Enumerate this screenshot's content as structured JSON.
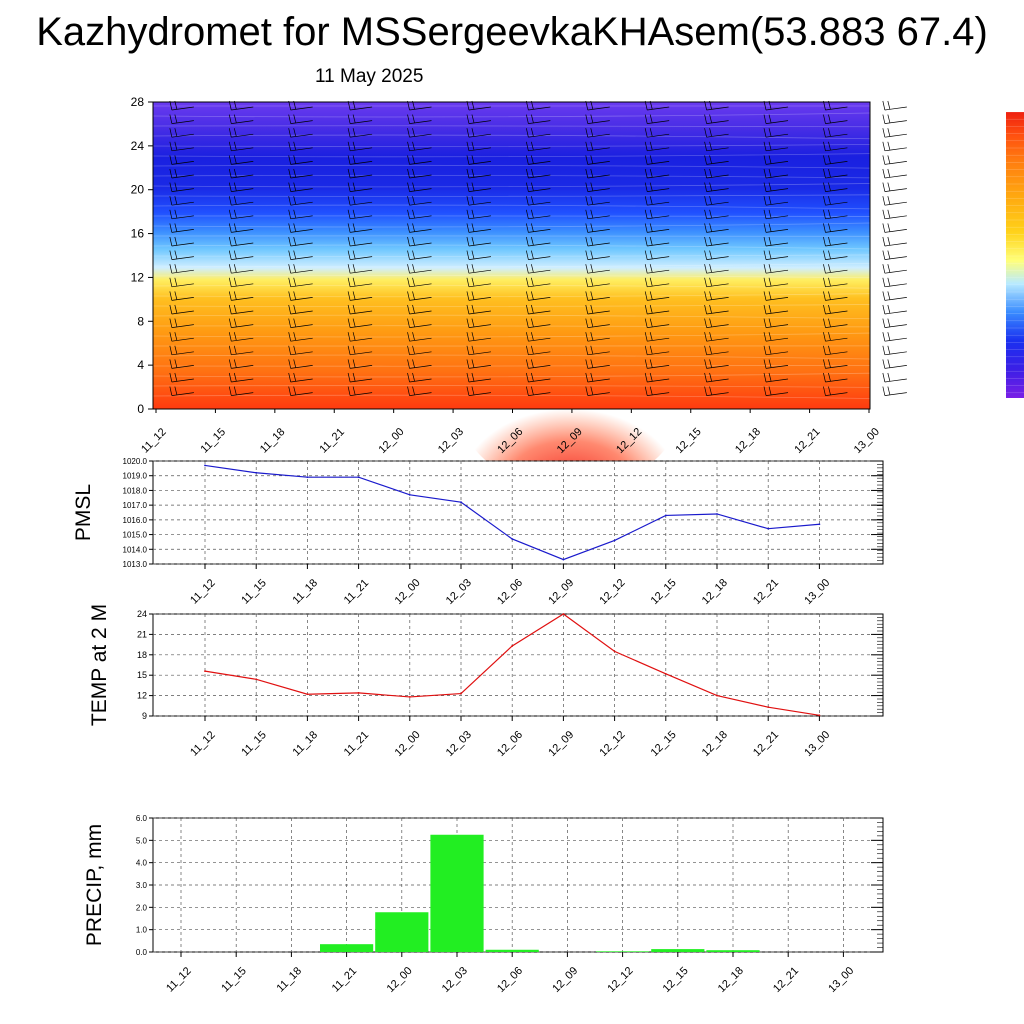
{
  "header": {
    "title": "Kazhydromet for MSSergeevkaKHAsem(53.883 67.4)",
    "subtitle": "11 May 2025"
  },
  "colors": {
    "pmsl_line": "#1a1acc",
    "temp_line": "#e01010",
    "precip_bar": "#22ee22",
    "grid": "#555555",
    "colorbar": [
      "#7a1fe6",
      "#3b1fe6",
      "#1a30f0",
      "#2050ff",
      "#3a8cff",
      "#6ec8ff",
      "#b8eaff",
      "#ffff7a",
      "#ffd21a",
      "#ffaa10",
      "#ff8010",
      "#ff5010",
      "#ee2010"
    ]
  },
  "chart_data": [
    {
      "type": "heatmap",
      "name": "cross-section",
      "categories": [
        "11_12",
        "11_15",
        "11_18",
        "11_21",
        "12_00",
        "12_03",
        "12_06",
        "12_09",
        "12_12",
        "12_15",
        "12_18",
        "12_21",
        "13_00"
      ],
      "yticks": [
        "0",
        "4",
        "8",
        "12",
        "16",
        "20",
        "24",
        "28"
      ],
      "ylim": [
        0,
        28
      ]
    },
    {
      "type": "line",
      "name": "pmsl",
      "ylabel": "PMSL",
      "categories": [
        "11_12",
        "11_15",
        "11_18",
        "11_21",
        "12_00",
        "12_03",
        "12_06",
        "12_09",
        "12_12",
        "12_15",
        "12_18",
        "12_21",
        "13_00"
      ],
      "values": [
        1019.7,
        1019.2,
        1018.9,
        1018.9,
        1017.7,
        1017.2,
        1014.7,
        1013.3,
        1014.6,
        1016.3,
        1016.4,
        1015.4,
        1015.7
      ],
      "yticks": [
        "1013.0",
        "1014.0",
        "1015.0",
        "1016.0",
        "1017.0",
        "1018.0",
        "1019.0",
        "1020.0"
      ],
      "ylim": [
        1013,
        1020
      ]
    },
    {
      "type": "line",
      "name": "temp",
      "ylabel": "TEMP at 2 M",
      "categories": [
        "11_12",
        "11_15",
        "11_18",
        "11_21",
        "12_00",
        "12_03",
        "12_06",
        "12_09",
        "12_12",
        "12_15",
        "12_18",
        "12_21",
        "13_00"
      ],
      "values": [
        15.6,
        14.4,
        12.2,
        12.4,
        11.8,
        12.3,
        19.3,
        24.0,
        18.5,
        15.2,
        12.0,
        10.3,
        9.1
      ],
      "yticks": [
        "9",
        "12",
        "15",
        "18",
        "21",
        "24"
      ],
      "ylim": [
        9,
        24
      ]
    },
    {
      "type": "bar",
      "name": "precip",
      "ylabel": "PRECIP, mm",
      "categories": [
        "11_12",
        "11_15",
        "11_18",
        "11_21",
        "12_00",
        "12_03",
        "12_06",
        "12_09",
        "12_12",
        "12_15",
        "12_18",
        "12_21",
        "13_00"
      ],
      "values": [
        0,
        0,
        0,
        0.35,
        1.78,
        5.25,
        0.1,
        0,
        0.03,
        0.13,
        0.08,
        0,
        0
      ],
      "yticks": [
        "0.0",
        "1.0",
        "2.0",
        "3.0",
        "4.0",
        "5.0",
        "6.0"
      ],
      "ylim": [
        0,
        6
      ]
    }
  ]
}
